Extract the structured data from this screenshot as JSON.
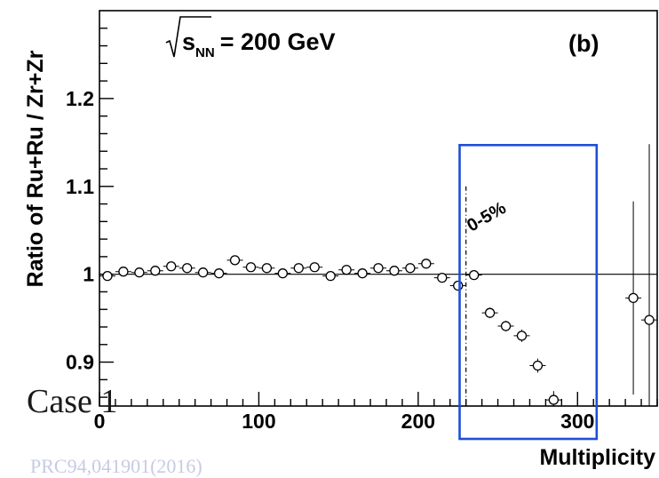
{
  "chart_data": {
    "type": "scatter",
    "title_energy": "= 200 GeV",
    "title_sqrt_symbol": "√",
    "title_s": "s",
    "title_sub": "NN",
    "panel_label": "(b)",
    "xlabel": "Multiplicity",
    "ylabel": "Ratio of Ru+Ru / Zr+Zr",
    "xlim": [
      0,
      350
    ],
    "ylim": [
      0.85,
      1.3
    ],
    "x_ticks": [
      0,
      100,
      200,
      300
    ],
    "x_tick_labels": [
      "0",
      "100",
      "200",
      "300"
    ],
    "y_ticks": [
      0.9,
      1.0,
      1.1,
      1.2
    ],
    "y_tick_labels": [
      "0.9",
      "1",
      "1.1",
      "1.2"
    ],
    "reference_line_y": 1.0,
    "centrality_cut_x": 230,
    "centrality_label": "0-5%",
    "highlight_box_color": "#1f4fd8",
    "highlight_x_range": [
      226,
      312
    ],
    "highlight_y_range": [
      0.8,
      1.147
    ],
    "series": [
      {
        "points": [
          {
            "x": 5,
            "y": 0.998,
            "err": 0.004
          },
          {
            "x": 15,
            "y": 1.003,
            "err": 0.004
          },
          {
            "x": 25,
            "y": 1.002,
            "err": 0.004
          },
          {
            "x": 35,
            "y": 1.004,
            "err": 0.004
          },
          {
            "x": 45,
            "y": 1.009,
            "err": 0.004
          },
          {
            "x": 55,
            "y": 1.007,
            "err": 0.004
          },
          {
            "x": 65,
            "y": 1.002,
            "err": 0.004
          },
          {
            "x": 75,
            "y": 1.001,
            "err": 0.004
          },
          {
            "x": 85,
            "y": 1.016,
            "err": 0.004
          },
          {
            "x": 95,
            "y": 1.008,
            "err": 0.004
          },
          {
            "x": 105,
            "y": 1.007,
            "err": 0.004
          },
          {
            "x": 115,
            "y": 1.001,
            "err": 0.004
          },
          {
            "x": 125,
            "y": 1.007,
            "err": 0.004
          },
          {
            "x": 135,
            "y": 1.008,
            "err": 0.004
          },
          {
            "x": 145,
            "y": 0.998,
            "err": 0.004
          },
          {
            "x": 155,
            "y": 1.005,
            "err": 0.004
          },
          {
            "x": 165,
            "y": 1.001,
            "err": 0.004
          },
          {
            "x": 175,
            "y": 1.007,
            "err": 0.004
          },
          {
            "x": 185,
            "y": 1.004,
            "err": 0.004
          },
          {
            "x": 195,
            "y": 1.007,
            "err": 0.004
          },
          {
            "x": 205,
            "y": 1.012,
            "err": 0.004
          },
          {
            "x": 215,
            "y": 0.996,
            "err": 0.005
          },
          {
            "x": 225,
            "y": 0.987,
            "err": 0.005
          },
          {
            "x": 235,
            "y": 0.999,
            "err": 0.005
          },
          {
            "x": 245,
            "y": 0.956,
            "err": 0.006
          },
          {
            "x": 255,
            "y": 0.941,
            "err": 0.006
          },
          {
            "x": 265,
            "y": 0.93,
            "err": 0.007
          },
          {
            "x": 275,
            "y": 0.896,
            "err": 0.008
          },
          {
            "x": 285,
            "y": 0.857,
            "err": 0.01
          },
          {
            "x": 335,
            "y": 0.973,
            "err": 0.11
          },
          {
            "x": 345,
            "y": 0.948,
            "err": 0.2
          }
        ]
      }
    ]
  },
  "overlay": {
    "case_label": "Case 1",
    "reference_label": "PRC94,041901(2016)"
  }
}
